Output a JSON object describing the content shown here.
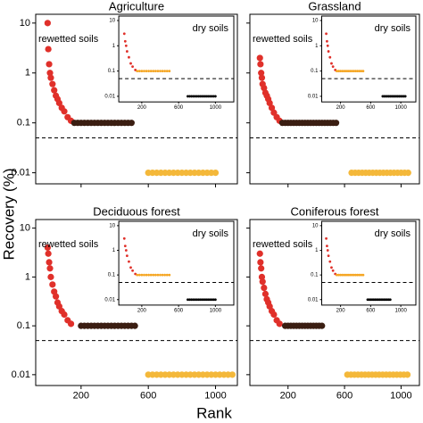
{
  "xlabel": "Rank",
  "ylabel": "Recovery (%)",
  "chart_data": [
    {
      "type": "scatter",
      "title": "Agriculture",
      "annotation": "rewetted soils",
      "log_y": true,
      "show_ytick_labels": true,
      "show_xtick_labels": false,
      "xlim": [
        -70,
        1130
      ],
      "ylim": [
        0.006,
        15
      ],
      "xticks": [
        200,
        600,
        1000
      ],
      "yticks": [
        0.01,
        0.1,
        1,
        10
      ],
      "hline": 0.05,
      "series": [
        {
          "color": "#e0302a",
          "x": [
            1,
            5,
            10,
            15,
            20,
            30,
            40,
            50,
            60,
            70,
            85,
            100,
            120,
            140
          ],
          "values": [
            10,
            3,
            1.5,
            1,
            0.8,
            0.6,
            0.45,
            0.35,
            0.3,
            0.25,
            0.2,
            0.17,
            0.13,
            0.11
          ]
        },
        {
          "color": "#3b1e12",
          "x": [
            160,
            180,
            200,
            220,
            240,
            260,
            280,
            300,
            320,
            340,
            360,
            380,
            400,
            420,
            440,
            460,
            480,
            500
          ],
          "values": [
            0.1,
            0.1,
            0.1,
            0.1,
            0.1,
            0.1,
            0.1,
            0.1,
            0.1,
            0.1,
            0.1,
            0.1,
            0.1,
            0.1,
            0.1,
            0.1,
            0.1,
            0.1
          ]
        },
        {
          "color": "#f4b83a",
          "x": [
            600,
            625,
            650,
            675,
            700,
            725,
            750,
            775,
            800,
            825,
            850,
            875,
            900,
            925,
            950,
            975,
            1000
          ],
          "values": [
            0.01,
            0.01,
            0.01,
            0.01,
            0.01,
            0.01,
            0.01,
            0.01,
            0.01,
            0.01,
            0.01,
            0.01,
            0.01,
            0.01,
            0.01,
            0.01,
            0.01
          ]
        }
      ],
      "inset": {
        "annotation": "dry soils",
        "xlim": [
          -50,
          1200
        ],
        "ylim": [
          0.006,
          15
        ],
        "xticks": [
          200,
          600,
          1000
        ],
        "yticks": [
          0.01,
          0.1,
          1,
          10
        ],
        "hline": 0.05,
        "series": [
          {
            "color": "#e0302a",
            "x": [
              10,
              20,
              30,
              40,
              60,
              80,
              100,
              130
            ],
            "values": [
              3,
              1.5,
              1,
              0.6,
              0.35,
              0.2,
              0.15,
              0.11
            ]
          },
          {
            "color": "#f5a623",
            "x": [
              150,
              175,
              200,
              225,
              250,
              275,
              300,
              325,
              350,
              375,
              400,
              425,
              450,
              475,
              500
            ],
            "values": [
              0.1,
              0.1,
              0.1,
              0.1,
              0.1,
              0.1,
              0.1,
              0.1,
              0.1,
              0.1,
              0.1,
              0.1,
              0.1,
              0.1,
              0.1
            ]
          },
          {
            "color": "#000000",
            "x": [
              700,
              720,
              740,
              760,
              780,
              800,
              820,
              840,
              860,
              880,
              900,
              920,
              940,
              960,
              980,
              1000
            ],
            "values": [
              0.01,
              0.01,
              0.01,
              0.01,
              0.01,
              0.01,
              0.01,
              0.01,
              0.01,
              0.01,
              0.01,
              0.01,
              0.01,
              0.01,
              0.01,
              0.01
            ]
          }
        ]
      }
    },
    {
      "type": "scatter",
      "title": "Grassland",
      "annotation": "rewetted soils",
      "log_y": true,
      "show_ytick_labels": false,
      "show_xtick_labels": false,
      "xlim": [
        -70,
        1130
      ],
      "ylim": [
        0.006,
        15
      ],
      "xticks": [
        200,
        600,
        1000
      ],
      "yticks": [
        0.01,
        0.1,
        1,
        10
      ],
      "hline": 0.05,
      "series": [
        {
          "color": "#e0302a",
          "x": [
            1,
            5,
            10,
            15,
            20,
            30,
            40,
            50,
            60,
            70,
            85,
            100,
            120,
            140
          ],
          "values": [
            2,
            1.5,
            1,
            0.8,
            0.6,
            0.5,
            0.4,
            0.35,
            0.3,
            0.25,
            0.2,
            0.16,
            0.13,
            0.11
          ]
        },
        {
          "color": "#3b1e12",
          "x": [
            160,
            180,
            200,
            220,
            240,
            260,
            280,
            300,
            320,
            340,
            360,
            380,
            400,
            420,
            440,
            460,
            480,
            500,
            520,
            540
          ],
          "values": [
            0.1,
            0.1,
            0.1,
            0.1,
            0.1,
            0.1,
            0.1,
            0.1,
            0.1,
            0.1,
            0.1,
            0.1,
            0.1,
            0.1,
            0.1,
            0.1,
            0.1,
            0.1,
            0.1,
            0.1
          ]
        },
        {
          "color": "#f4b83a",
          "x": [
            650,
            675,
            700,
            725,
            750,
            775,
            800,
            825,
            850,
            875,
            900,
            925,
            950,
            975,
            1000,
            1025,
            1050
          ],
          "values": [
            0.01,
            0.01,
            0.01,
            0.01,
            0.01,
            0.01,
            0.01,
            0.01,
            0.01,
            0.01,
            0.01,
            0.01,
            0.01,
            0.01,
            0.01,
            0.01,
            0.01
          ]
        }
      ],
      "inset": {
        "annotation": "dry soils",
        "xlim": [
          -50,
          1200
        ],
        "ylim": [
          0.006,
          15
        ],
        "xticks": [
          200,
          600,
          1000
        ],
        "yticks": [
          0.01,
          0.1,
          1,
          10
        ],
        "hline": 0.05,
        "series": [
          {
            "color": "#e0302a",
            "x": [
              10,
              20,
              30,
              40,
              60,
              80,
              100,
              130
            ],
            "values": [
              3,
              1.5,
              1,
              0.6,
              0.35,
              0.2,
              0.15,
              0.11
            ]
          },
          {
            "color": "#f5a623",
            "x": [
              150,
              175,
              200,
              225,
              250,
              275,
              300,
              325,
              350,
              375,
              400,
              425,
              450,
              475,
              500
            ],
            "values": [
              0.1,
              0.1,
              0.1,
              0.1,
              0.1,
              0.1,
              0.1,
              0.1,
              0.1,
              0.1,
              0.1,
              0.1,
              0.1,
              0.1,
              0.1
            ]
          },
          {
            "color": "#000000",
            "x": [
              760,
              780,
              800,
              820,
              840,
              860,
              880,
              900,
              920,
              940,
              960,
              980,
              1000,
              1020,
              1040,
              1060
            ],
            "values": [
              0.01,
              0.01,
              0.01,
              0.01,
              0.01,
              0.01,
              0.01,
              0.01,
              0.01,
              0.01,
              0.01,
              0.01,
              0.01,
              0.01,
              0.01,
              0.01
            ]
          }
        ]
      }
    },
    {
      "type": "scatter",
      "title": "Deciduous forest",
      "annotation": "rewetted soils",
      "log_y": true,
      "show_ytick_labels": true,
      "show_xtick_labels": true,
      "xlim": [
        -70,
        1130
      ],
      "ylim": [
        0.006,
        15
      ],
      "xticks": [
        200,
        600,
        1000
      ],
      "yticks": [
        0.01,
        0.1,
        1,
        10
      ],
      "hline": 0.05,
      "series": [
        {
          "color": "#e0302a",
          "x": [
            1,
            5,
            10,
            15,
            20,
            30,
            40,
            50,
            60,
            70,
            85,
            100,
            120,
            140
          ],
          "values": [
            4,
            3,
            2,
            1.5,
            1,
            0.7,
            0.5,
            0.4,
            0.3,
            0.25,
            0.2,
            0.17,
            0.13,
            0.11
          ]
        },
        {
          "color": "#3b1e12",
          "x": [
            200,
            220,
            240,
            260,
            280,
            300,
            320,
            340,
            360,
            380,
            400,
            420,
            440,
            460,
            480,
            500,
            520
          ],
          "values": [
            0.1,
            0.1,
            0.1,
            0.1,
            0.1,
            0.1,
            0.1,
            0.1,
            0.1,
            0.1,
            0.1,
            0.1,
            0.1,
            0.1,
            0.1,
            0.1,
            0.1
          ]
        },
        {
          "color": "#f4b83a",
          "x": [
            600,
            625,
            650,
            675,
            700,
            725,
            750,
            775,
            800,
            825,
            850,
            875,
            900,
            925,
            950,
            975,
            1000,
            1025,
            1050,
            1075,
            1100
          ],
          "values": [
            0.01,
            0.01,
            0.01,
            0.01,
            0.01,
            0.01,
            0.01,
            0.01,
            0.01,
            0.01,
            0.01,
            0.01,
            0.01,
            0.01,
            0.01,
            0.01,
            0.01,
            0.01,
            0.01,
            0.01,
            0.01
          ]
        }
      ],
      "inset": {
        "annotation": "dry soils",
        "xlim": [
          -50,
          1200
        ],
        "ylim": [
          0.006,
          15
        ],
        "xticks": [
          200,
          600,
          1000
        ],
        "yticks": [
          0.01,
          0.1,
          1,
          10
        ],
        "hline": 0.05,
        "series": [
          {
            "color": "#e0302a",
            "x": [
              10,
              20,
              30,
              40,
              60,
              80,
              100,
              130
            ],
            "values": [
              3,
              1.5,
              1,
              0.6,
              0.35,
              0.2,
              0.15,
              0.11
            ]
          },
          {
            "color": "#f5a623",
            "x": [
              150,
              175,
              200,
              225,
              250,
              275,
              300,
              325,
              350,
              375,
              400,
              425,
              450,
              475,
              500
            ],
            "values": [
              0.1,
              0.1,
              0.1,
              0.1,
              0.1,
              0.1,
              0.1,
              0.1,
              0.1,
              0.1,
              0.1,
              0.1,
              0.1,
              0.1,
              0.1
            ]
          },
          {
            "color": "#000000",
            "x": [
              700,
              720,
              740,
              760,
              780,
              800,
              820,
              840,
              860,
              880,
              900,
              920,
              940,
              960,
              980,
              1000
            ],
            "values": [
              0.01,
              0.01,
              0.01,
              0.01,
              0.01,
              0.01,
              0.01,
              0.01,
              0.01,
              0.01,
              0.01,
              0.01,
              0.01,
              0.01,
              0.01,
              0.01
            ]
          }
        ]
      }
    },
    {
      "type": "scatter",
      "title": "Coniferous forest",
      "annotation": "rewetted soils",
      "log_y": true,
      "show_ytick_labels": false,
      "show_xtick_labels": true,
      "xlim": [
        -70,
        1130
      ],
      "ylim": [
        0.006,
        15
      ],
      "xticks": [
        200,
        600,
        1000
      ],
      "yticks": [
        0.01,
        0.1,
        1,
        10
      ],
      "hline": 0.05,
      "series": [
        {
          "color": "#e0302a",
          "x": [
            1,
            5,
            10,
            15,
            20,
            30,
            40,
            50,
            60,
            70,
            85,
            100,
            120,
            140
          ],
          "values": [
            3,
            2,
            1.5,
            1,
            0.8,
            0.6,
            0.45,
            0.35,
            0.3,
            0.25,
            0.2,
            0.17,
            0.13,
            0.11
          ]
        },
        {
          "color": "#3b1e12",
          "x": [
            180,
            200,
            220,
            240,
            260,
            280,
            300,
            320,
            340,
            360,
            380,
            400,
            420,
            440
          ],
          "values": [
            0.1,
            0.1,
            0.1,
            0.1,
            0.1,
            0.1,
            0.1,
            0.1,
            0.1,
            0.1,
            0.1,
            0.1,
            0.1,
            0.1
          ]
        },
        {
          "color": "#f4b83a",
          "x": [
            620,
            645,
            670,
            695,
            720,
            745,
            770,
            795,
            820,
            845,
            870,
            895,
            920,
            945,
            970,
            995,
            1020,
            1045
          ],
          "values": [
            0.01,
            0.01,
            0.01,
            0.01,
            0.01,
            0.01,
            0.01,
            0.01,
            0.01,
            0.01,
            0.01,
            0.01,
            0.01,
            0.01,
            0.01,
            0.01,
            0.01,
            0.01
          ]
        }
      ],
      "inset": {
        "annotation": "dry soils",
        "xlim": [
          -50,
          1200
        ],
        "ylim": [
          0.006,
          15
        ],
        "xticks": [
          200,
          600,
          1000
        ],
        "yticks": [
          0.01,
          0.1,
          1,
          10
        ],
        "hline": 0.05,
        "series": [
          {
            "color": "#e0302a",
            "x": [
              10,
              20,
              30,
              40,
              60,
              80,
              100,
              130
            ],
            "values": [
              3,
              1.5,
              1,
              0.6,
              0.35,
              0.2,
              0.15,
              0.11
            ]
          },
          {
            "color": "#f5a623",
            "x": [
              150,
              175,
              200,
              225,
              250,
              275,
              300,
              325,
              350,
              375,
              400,
              425,
              450,
              475,
              500
            ],
            "values": [
              0.1,
              0.1,
              0.1,
              0.1,
              0.1,
              0.1,
              0.1,
              0.1,
              0.1,
              0.1,
              0.1,
              0.1,
              0.1,
              0.1,
              0.1
            ]
          },
          {
            "color": "#000000",
            "x": [
              560,
              580,
              600,
              620,
              640,
              660,
              680,
              700,
              720,
              740,
              760,
              780,
              800,
              820,
              840,
              860
            ],
            "values": [
              0.01,
              0.01,
              0.01,
              0.01,
              0.01,
              0.01,
              0.01,
              0.01,
              0.01,
              0.01,
              0.01,
              0.01,
              0.01,
              0.01,
              0.01,
              0.01
            ]
          }
        ]
      }
    }
  ]
}
